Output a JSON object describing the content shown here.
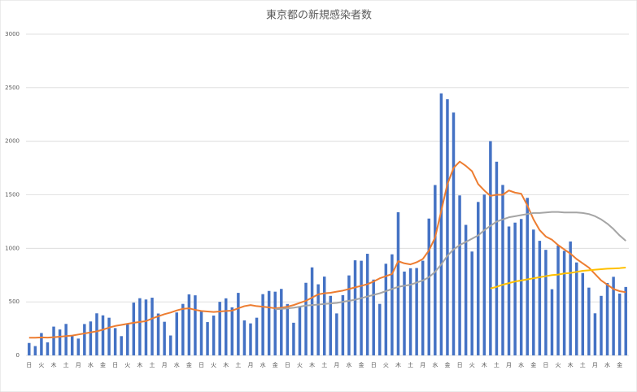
{
  "chart_data": {
    "type": "bar",
    "title": "東京都の新規感染者数",
    "categories": [
      "日",
      null,
      "火",
      null,
      "木",
      null,
      "土",
      null,
      "月",
      null,
      "水",
      null,
      "金",
      null,
      "日",
      null,
      "火",
      null,
      "木",
      null,
      "土",
      null,
      "月",
      null,
      "水",
      null,
      "金",
      null,
      "日",
      null,
      "火",
      null,
      "木",
      null,
      "土",
      null,
      "月",
      null,
      "水",
      null,
      "金",
      null,
      "日",
      null,
      "火",
      null,
      "木",
      null,
      "土",
      null,
      "月",
      null,
      "水",
      null,
      "金",
      null,
      "日",
      null,
      "火",
      null,
      "木",
      null,
      "土",
      null,
      "月",
      null,
      "水",
      null,
      "金",
      null,
      "日",
      null,
      "火",
      null,
      "木",
      null,
      "土",
      null,
      "月",
      null,
      "水",
      null,
      "金",
      null,
      "日",
      null,
      "火",
      null,
      "木",
      null,
      "土",
      null,
      "月",
      null,
      "水",
      null,
      "金",
      null
    ],
    "series": [
      {
        "type": "bar",
        "color": "#4472c4",
        "values": [
          116,
          87,
          209,
          122,
          269,
          242,
          294,
          189,
          157,
          293,
          317,
          393,
          374,
          352,
          255,
          180,
          298,
          493,
          534,
          522,
          539,
          391,
          314,
          186,
          401,
          481,
          570,
          561,
          418,
          311,
          372,
          500,
          533,
          449,
          584,
          327,
          299,
          352,
          572,
          602,
          595,
          621,
          480,
          305,
          460,
          678,
          822,
          664,
          736,
          556,
          392,
          563,
          747,
          888,
          884,
          949,
          708,
          481,
          856,
          944,
          1337,
          783,
          814,
          816,
          884,
          1278,
          1591,
          2447,
          2392,
          2268,
          1494,
          1219,
          970,
          1433,
          1502,
          2001,
          1809,
          1592,
          1204,
          1240,
          1274,
          1471,
          1175,
          1070,
          986,
          618,
          1026,
          976,
          1064,
          868,
          769,
          633,
          393,
          556,
          676,
          734,
          577,
          639
        ]
      },
      {
        "type": "line",
        "color": "#ed7d31",
        "values": [
          165,
          165,
          168,
          166,
          170,
          175,
          180,
          185,
          195,
          205,
          215,
          225,
          240,
          260,
          275,
          285,
          295,
          305,
          312,
          320,
          345,
          365,
          385,
          400,
          420,
          435,
          440,
          425,
          415,
          410,
          405,
          410,
          415,
          418,
          440,
          460,
          470,
          460,
          455,
          448,
          440,
          445,
          455,
          470,
          490,
          510,
          540,
          570,
          580,
          585,
          595,
          605,
          620,
          635,
          650,
          665,
          690,
          720,
          740,
          760,
          880,
          860,
          850,
          870,
          900,
          980,
          1100,
          1350,
          1600,
          1750,
          1810,
          1770,
          1720,
          1600,
          1540,
          1490,
          1500,
          1500,
          1540,
          1520,
          1510,
          1400,
          1270,
          1170,
          1110,
          1080,
          1030,
          990,
          950,
          900,
          860,
          820,
          760,
          700,
          660,
          620,
          600,
          590
        ]
      },
      {
        "type": "line",
        "color": "#a5a5a5",
        "values": [
          null,
          null,
          null,
          null,
          null,
          null,
          null,
          null,
          null,
          null,
          null,
          null,
          null,
          null,
          null,
          null,
          null,
          null,
          null,
          null,
          null,
          null,
          null,
          null,
          null,
          null,
          null,
          null,
          null,
          null,
          null,
          null,
          null,
          null,
          null,
          null,
          null,
          null,
          null,
          null,
          430,
          435,
          440,
          445,
          455,
          465,
          470,
          475,
          480,
          485,
          490,
          500,
          510,
          520,
          535,
          550,
          565,
          580,
          600,
          620,
          640,
          650,
          660,
          680,
          700,
          730,
          780,
          850,
          930,
          990,
          1030,
          1060,
          1090,
          1120,
          1170,
          1210,
          1250,
          1270,
          1290,
          1300,
          1310,
          1320,
          1330,
          1330,
          1335,
          1340,
          1340,
          1335,
          1335,
          1335,
          1330,
          1320,
          1300,
          1270,
          1230,
          1180,
          1120,
          1070
        ]
      },
      {
        "type": "line",
        "color": "#ffc000",
        "values": [
          null,
          null,
          null,
          null,
          null,
          null,
          null,
          null,
          null,
          null,
          null,
          null,
          null,
          null,
          null,
          null,
          null,
          null,
          null,
          null,
          null,
          null,
          null,
          null,
          null,
          null,
          null,
          null,
          null,
          null,
          null,
          null,
          null,
          null,
          null,
          null,
          null,
          null,
          null,
          null,
          null,
          null,
          null,
          null,
          null,
          null,
          null,
          null,
          null,
          null,
          null,
          null,
          null,
          null,
          null,
          null,
          null,
          null,
          null,
          null,
          null,
          null,
          null,
          null,
          null,
          null,
          null,
          null,
          null,
          null,
          null,
          null,
          null,
          null,
          null,
          625,
          640,
          660,
          675,
          690,
          700,
          710,
          720,
          730,
          740,
          750,
          755,
          765,
          770,
          780,
          790,
          795,
          800,
          805,
          810,
          812,
          815,
          820
        ]
      }
    ],
    "ylim": [
      0,
      3000
    ],
    "yticks": [
      0,
      500,
      1000,
      1500,
      2000,
      2500,
      3000
    ],
    "grid": true
  }
}
